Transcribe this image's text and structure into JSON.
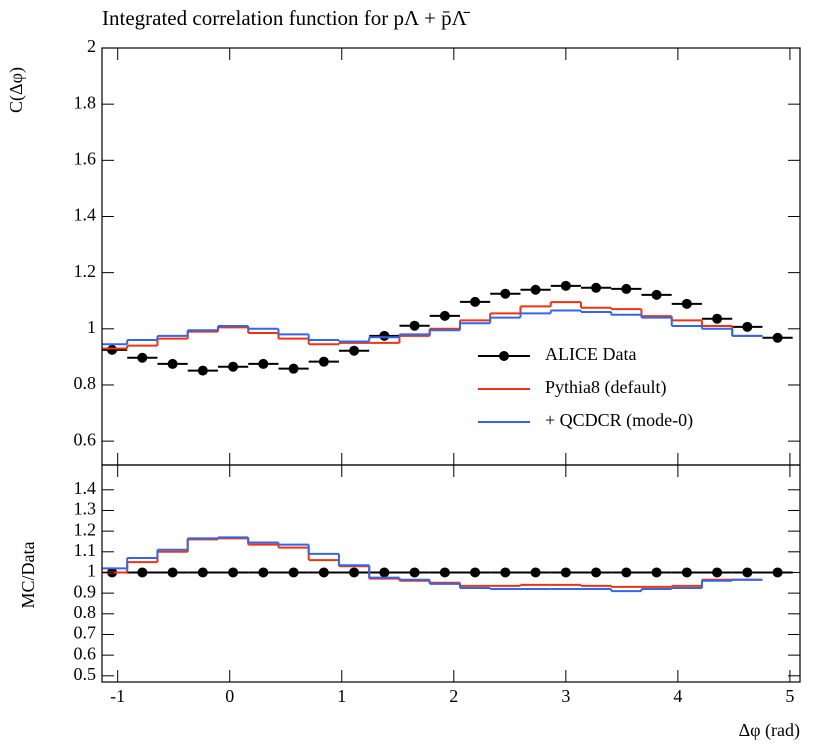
{
  "chart_data": [
    {
      "type": "step",
      "title": "Integrated correlation function for pΛ + p̄Λ̄",
      "ylabel": "C(Δφ)",
      "x": [
        -1.05,
        -0.78,
        -0.51,
        -0.24,
        0.03,
        0.3,
        0.57,
        0.84,
        1.11,
        1.38,
        1.65,
        1.92,
        2.19,
        2.46,
        2.73,
        3.0,
        3.27,
        3.54,
        3.81,
        4.08,
        4.35,
        4.62,
        4.89
      ],
      "bin_width": 0.27,
      "xlim": [
        -1.14,
        5.09
      ],
      "xticks": [
        -1,
        0,
        1,
        2,
        3,
        4,
        5
      ],
      "ylim": [
        0.515,
        2
      ],
      "yticks": [
        0.6,
        0.8,
        1,
        1.2,
        1.4,
        1.6,
        1.8,
        2
      ],
      "legend": "right",
      "series": [
        {
          "name": "ALICE Data",
          "color": "#000000",
          "style": "errorbar",
          "values": [
            0.925,
            0.897,
            0.875,
            0.851,
            0.865,
            0.875,
            0.858,
            0.883,
            0.922,
            0.975,
            1.011,
            1.046,
            1.096,
            1.125,
            1.139,
            1.153,
            1.146,
            1.142,
            1.121,
            1.089,
            1.036,
            1.007,
            0.968
          ]
        },
        {
          "name": "Pythia8 (default)",
          "color": "#ee3311",
          "style": "step",
          "values": [
            0.93,
            0.94,
            0.965,
            0.99,
            1.005,
            0.985,
            0.965,
            0.945,
            0.95,
            0.95,
            0.975,
            1.0,
            1.03,
            1.055,
            1.08,
            1.095,
            1.075,
            1.07,
            1.045,
            1.03,
            1.01,
            0.975,
            null
          ]
        },
        {
          "name": "+ QCDCR (mode-0)",
          "color": "#3366ee",
          "style": "step",
          "values": [
            0.945,
            0.96,
            0.975,
            0.995,
            1.01,
            1.0,
            0.98,
            0.96,
            0.955,
            0.97,
            0.98,
            0.995,
            1.02,
            1.04,
            1.055,
            1.065,
            1.06,
            1.05,
            1.04,
            1.01,
            1.0,
            0.975,
            null
          ]
        }
      ]
    },
    {
      "type": "step",
      "ylabel": "MC/Data",
      "xlabel": "Δφ (rad)",
      "x": [
        -1.05,
        -0.78,
        -0.51,
        -0.24,
        0.03,
        0.3,
        0.57,
        0.84,
        1.11,
        1.38,
        1.65,
        1.92,
        2.19,
        2.46,
        2.73,
        3.0,
        3.27,
        3.54,
        3.81,
        4.08,
        4.35,
        4.62,
        4.89
      ],
      "bin_width": 0.27,
      "xlim": [
        -1.14,
        5.09
      ],
      "xticks": [
        -1,
        0,
        1,
        2,
        3,
        4,
        5
      ],
      "ylim": [
        0.47,
        1.52
      ],
      "yticks": [
        0.5,
        0.6,
        0.7,
        0.8,
        0.9,
        1,
        1.1,
        1.2,
        1.3,
        1.4
      ],
      "series": [
        {
          "color": "#000000",
          "style": "errorbar",
          "values": [
            1,
            1,
            1,
            1,
            1,
            1,
            1,
            1,
            1,
            1,
            1,
            1,
            1,
            1,
            1,
            1,
            1,
            1,
            1,
            1,
            1,
            1,
            1
          ]
        },
        {
          "color": "#ee3311",
          "style": "step",
          "values": [
            1.0,
            1.05,
            1.1,
            1.16,
            1.165,
            1.135,
            1.12,
            1.06,
            1.03,
            0.97,
            0.96,
            0.95,
            0.935,
            0.935,
            0.94,
            0.94,
            0.935,
            0.93,
            0.93,
            0.935,
            0.965,
            0.965,
            null
          ]
        },
        {
          "color": "#3366ee",
          "style": "step",
          "values": [
            1.02,
            1.07,
            1.11,
            1.165,
            1.17,
            1.145,
            1.135,
            1.09,
            1.035,
            0.975,
            0.965,
            0.945,
            0.925,
            0.92,
            0.92,
            0.92,
            0.92,
            0.91,
            0.92,
            0.925,
            0.96,
            0.965,
            null
          ]
        }
      ]
    }
  ]
}
